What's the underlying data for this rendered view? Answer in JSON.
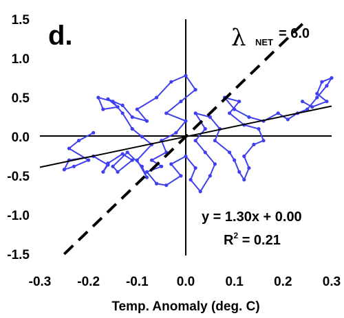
{
  "chart_data": {
    "type": "scatter",
    "panel_label": "d.",
    "xlabel": "Temp.  Anomaly (deg. C)",
    "ylabel": "",
    "xlim": [
      -0.3,
      0.3
    ],
    "ylim": [
      -1.5,
      1.5
    ],
    "x_ticks": [
      "-0.3",
      "-0.2",
      "-0.1",
      "0.0",
      "0.1",
      "0.2",
      "0.3"
    ],
    "y_ticks": [
      "1.5",
      "1.0",
      "0.5",
      "0.0",
      "-0.5",
      "-1.0",
      "-1.5"
    ],
    "series_color": "#3f3fef",
    "series": [
      {
        "points": [
          [
            -0.19,
            0.05
          ],
          [
            -0.22,
            -0.05
          ],
          [
            -0.24,
            -0.15
          ],
          [
            -0.2,
            -0.3
          ],
          [
            -0.23,
            -0.38
          ],
          [
            -0.25,
            -0.42
          ],
          [
            -0.24,
            -0.3
          ],
          [
            -0.19,
            -0.25
          ],
          [
            -0.16,
            -0.36
          ],
          [
            -0.17,
            -0.45
          ],
          [
            -0.16,
            -0.34
          ],
          [
            -0.13,
            -0.22
          ],
          [
            -0.11,
            -0.3
          ],
          [
            -0.14,
            -0.45
          ],
          [
            -0.15,
            -0.38
          ],
          [
            -0.12,
            -0.2
          ],
          [
            -0.09,
            -0.38
          ],
          [
            -0.08,
            -0.52
          ],
          [
            -0.1,
            -0.3
          ],
          [
            -0.07,
            -0.1
          ],
          [
            -0.09,
            0.0
          ],
          [
            -0.11,
            0.1
          ],
          [
            -0.13,
            0.3
          ],
          [
            -0.15,
            0.45
          ],
          [
            -0.18,
            0.5
          ],
          [
            -0.17,
            0.35
          ],
          [
            -0.14,
            0.38
          ],
          [
            -0.16,
            0.48
          ],
          [
            -0.13,
            0.4
          ],
          [
            -0.11,
            0.25
          ],
          [
            -0.08,
            0.2
          ],
          [
            -0.1,
            0.35
          ],
          [
            -0.06,
            0.5
          ],
          [
            -0.03,
            0.7
          ],
          [
            0.0,
            0.78
          ],
          [
            0.02,
            0.6
          ],
          [
            -0.01,
            0.45
          ],
          [
            -0.04,
            0.3
          ],
          [
            0.0,
            0.2
          ],
          [
            -0.02,
            0.05
          ],
          [
            -0.05,
            -0.05
          ],
          [
            -0.04,
            -0.2
          ],
          [
            -0.07,
            -0.3
          ],
          [
            -0.05,
            -0.38
          ],
          [
            -0.08,
            -0.45
          ],
          [
            -0.06,
            -0.6
          ],
          [
            -0.04,
            -0.62
          ],
          [
            -0.01,
            -0.5
          ],
          [
            -0.03,
            -0.35
          ],
          [
            0.0,
            -0.25
          ],
          [
            0.02,
            -0.4
          ],
          [
            0.01,
            -0.55
          ],
          [
            0.03,
            -0.7
          ],
          [
            0.05,
            -0.5
          ],
          [
            0.06,
            -0.35
          ],
          [
            0.04,
            -0.2
          ],
          [
            0.02,
            -0.05
          ],
          [
            0.04,
            0.1
          ],
          [
            0.02,
            0.3
          ],
          [
            0.05,
            0.25
          ],
          [
            0.07,
            0.1
          ],
          [
            0.06,
            -0.05
          ],
          [
            0.09,
            -0.2
          ],
          [
            0.1,
            -0.3
          ],
          [
            0.11,
            -0.45
          ],
          [
            0.12,
            -0.55
          ],
          [
            0.13,
            -0.4
          ],
          [
            0.12,
            -0.25
          ],
          [
            0.14,
            -0.1
          ],
          [
            0.16,
            -0.05
          ],
          [
            0.15,
            0.1
          ],
          [
            0.12,
            0.15
          ],
          [
            0.09,
            0.3
          ],
          [
            0.11,
            0.45
          ],
          [
            0.08,
            0.5
          ],
          [
            0.1,
            0.35
          ],
          [
            0.13,
            0.25
          ],
          [
            0.16,
            0.2
          ],
          [
            0.19,
            0.3
          ],
          [
            0.21,
            0.22
          ],
          [
            0.23,
            0.3
          ],
          [
            0.25,
            0.35
          ],
          [
            0.27,
            0.5
          ],
          [
            0.29,
            0.65
          ],
          [
            0.3,
            0.75
          ],
          [
            0.28,
            0.7
          ],
          [
            0.27,
            0.55
          ],
          [
            0.29,
            0.45
          ],
          [
            0.26,
            0.38
          ],
          [
            0.24,
            0.45
          ]
        ]
      }
    ],
    "fit_line": {
      "slope": 1.3,
      "intercept": 0.0,
      "style": "solid"
    },
    "reference_line": {
      "slope": 6.0,
      "intercept": 0.0,
      "style": "dashed"
    },
    "annotations": {
      "lambda_symbol": "λ",
      "lambda_subscript": "NET",
      "lambda_value": "= 6.0",
      "equation": "y = 1.30x + 0.00",
      "r2_prefix": "R",
      "r2_exp": "2",
      "r2_value": " = 0.21"
    }
  }
}
